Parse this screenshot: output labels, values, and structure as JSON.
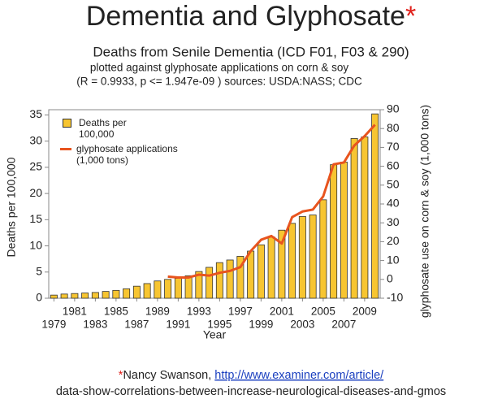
{
  "title": "Dementia and Glyphosate",
  "title_marker": "*",
  "chart_data": {
    "type": "bar",
    "title": "Deaths from Senile Dementia (ICD F01, F03 & 290)",
    "subtitle": [
      "plotted against glyphosate applications on corn & soy",
      "(R = 0.9933, p <= 1.947e-09 ) sources: USDA:NASS; CDC"
    ],
    "x_label": "Year",
    "y_label": "Deaths per 100,000",
    "y2_label": "glyphosate use on corn & soy (1,000 tons)",
    "categories": [
      "1979",
      null,
      "1981",
      null,
      "1983",
      null,
      "1985",
      null,
      "1987",
      null,
      "1989",
      null,
      "1991",
      null,
      "1993",
      null,
      "1995",
      null,
      "1997",
      null,
      "1999",
      null,
      "2001",
      null,
      "2003",
      null,
      "2005",
      null,
      "2007",
      null,
      "2009",
      null
    ],
    "series": [
      {
        "name": "Deaths per 100,000",
        "type": "bar",
        "color": "#f7c531",
        "values": [
          0.6,
          0.8,
          0.9,
          1.0,
          1.1,
          1.3,
          1.5,
          1.8,
          2.3,
          2.8,
          3.3,
          3.6,
          3.8,
          4.3,
          5.1,
          5.9,
          6.8,
          7.3,
          8.0,
          9.0,
          10.2,
          11.7,
          13.0,
          14.3,
          15.6,
          15.9,
          18.8,
          25.5,
          26.0,
          30.5,
          30.8,
          35.2
        ]
      },
      {
        "name": "glyphosate applications (1,000 tons)",
        "type": "line",
        "axis": "y2",
        "color": "#e8541e",
        "values": [
          null,
          null,
          null,
          null,
          null,
          null,
          null,
          null,
          null,
          null,
          null,
          1.5,
          1,
          1,
          2.5,
          2,
          3.5,
          4.5,
          6.5,
          15,
          21,
          23,
          19,
          33,
          36,
          37,
          44,
          61,
          62,
          71,
          76,
          82
        ]
      }
    ],
    "ylim": [
      0,
      36
    ],
    "yticks": [
      0,
      5,
      10,
      15,
      20,
      25,
      30,
      35
    ],
    "y2lim": [
      -10,
      90
    ],
    "y2ticks": [
      -10,
      0,
      10,
      20,
      30,
      40,
      50,
      60,
      70,
      80,
      90
    ],
    "grid": false,
    "legend": "top-left"
  },
  "footer": {
    "marker": "*",
    "author": "Nancy Swanson, ",
    "url": "http://www.examiner.com/article/",
    "url_continued": "data-show-correlations-between-increase-neurological-diseases-and-gmos"
  }
}
